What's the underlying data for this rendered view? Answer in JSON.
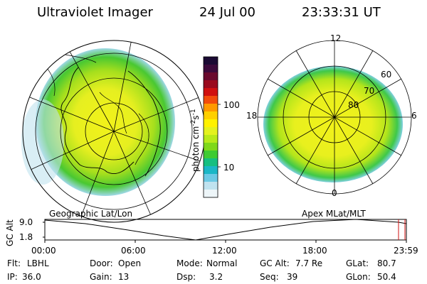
{
  "header": {
    "instrument": "Ultraviolet Imager",
    "date": "24 Jul 00",
    "time": "23:33:31 UT"
  },
  "left_panel": {
    "label": "Geographic Lat/Lon"
  },
  "right_panel": {
    "label": "Apex MLat/MLT",
    "mlt_labels": [
      "12",
      "18",
      "6",
      "0"
    ],
    "lat_labels": [
      "60",
      "70",
      "80"
    ]
  },
  "colorbar": {
    "unit_label": "photon cm",
    "unit_sup1": "-2",
    "unit_s": "s",
    "unit_sup2": "-1",
    "tick_labels": [
      "100",
      "10"
    ],
    "colors": [
      "#1a0a33",
      "#3b0a3b",
      "#6a0a2e",
      "#9a0a1e",
      "#d01010",
      "#f24c0c",
      "#ff9a00",
      "#ffd000",
      "#fff200",
      "#e4f21f",
      "#b8ea1a",
      "#7fd81a",
      "#3ecb32",
      "#16bf80",
      "#1bb7c6",
      "#6cc9e4",
      "#bfe2ef",
      "#eef6f9"
    ]
  },
  "altitude_plot": {
    "axis_label": "GC Alt",
    "y_ticks": [
      "9.0",
      "1.8"
    ],
    "x_ticks": [
      "00:00",
      "06:00",
      "12:00",
      "18:00",
      "23:59"
    ]
  },
  "info": {
    "row1": [
      {
        "label": "Flt:",
        "value": "LBHL"
      },
      {
        "label": "Door:",
        "value": "Open"
      },
      {
        "label": "Mode:",
        "value": "Normal"
      },
      {
        "label": "GC Alt:",
        "value": "7.7 Re"
      },
      {
        "label": "GLat:",
        "value": "80.7"
      }
    ],
    "row2": [
      {
        "label": "IP:",
        "value": "36.0"
      },
      {
        "label": "Gain:",
        "value": "13"
      },
      {
        "label": "Dsp:",
        "value": "3.2"
      },
      {
        "label": "Seq:",
        "value": "39"
      },
      {
        "label": "GLon:",
        "value": "50.4"
      }
    ]
  }
}
